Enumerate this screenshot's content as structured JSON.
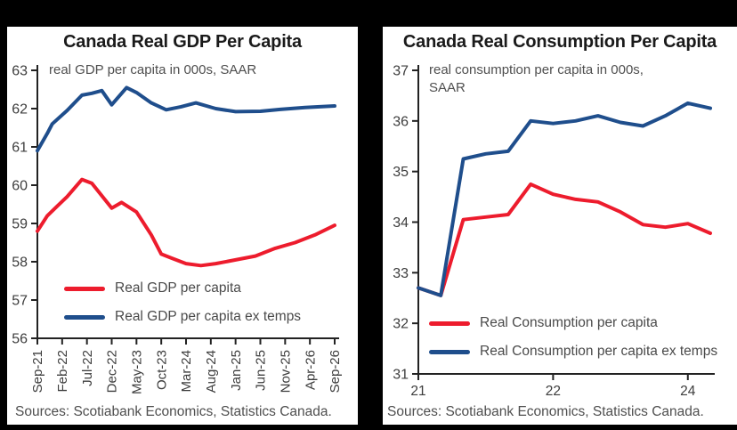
{
  "page": {
    "frame_background": "#000000",
    "panel_background": "#ffffff",
    "accent_red": "#ed1c2d",
    "accent_navy": "#1f4e8c"
  },
  "chart_data": [
    {
      "type": "line",
      "title": "Canada Real GDP Per Capita",
      "note": "real GDP per capita in 000s, SAAR",
      "source": "Sources: Scotiabank Economics, Statistics Canada.",
      "legend_position": "inside-lower-left",
      "grid": false,
      "y_axis": {
        "min": 56,
        "max": 63,
        "step": 1,
        "ticks": [
          63,
          62,
          61,
          60,
          59,
          58,
          57,
          56
        ]
      },
      "x_axis": {
        "max_x": 60,
        "unit": "months from Sep-21",
        "rotated_labels": true,
        "ticks": [
          {
            "x": 0,
            "label": "Sep-21"
          },
          {
            "x": 5,
            "label": "Feb-22"
          },
          {
            "x": 10,
            "label": "Jul-22"
          },
          {
            "x": 15,
            "label": "Dec-22"
          },
          {
            "x": 20,
            "label": "May-23"
          },
          {
            "x": 25,
            "label": "Oct-23"
          },
          {
            "x": 30,
            "label": "Mar-24"
          },
          {
            "x": 35,
            "label": "Aug-24"
          },
          {
            "x": 40,
            "label": "Jan-25"
          },
          {
            "x": 45,
            "label": "Jun-25"
          },
          {
            "x": 50,
            "label": "Nov-25"
          },
          {
            "x": 55,
            "label": "Apr-26"
          },
          {
            "x": 60,
            "label": "Sep-26"
          }
        ]
      },
      "series": [
        {
          "name": "Real GDP per capita",
          "color": "#ed1c2d",
          "points": [
            [
              0,
              58.8
            ],
            [
              2,
              59.2
            ],
            [
              4,
              59.45
            ],
            [
              6,
              59.7
            ],
            [
              9,
              60.15
            ],
            [
              11,
              60.05
            ],
            [
              15,
              59.4
            ],
            [
              17,
              59.55
            ],
            [
              20,
              59.3
            ],
            [
              23,
              58.7
            ],
            [
              25,
              58.2
            ],
            [
              27,
              58.1
            ],
            [
              30,
              57.95
            ],
            [
              33,
              57.9
            ],
            [
              36,
              57.95
            ],
            [
              40,
              58.05
            ],
            [
              44,
              58.15
            ],
            [
              48,
              58.35
            ],
            [
              52,
              58.5
            ],
            [
              56,
              58.7
            ],
            [
              60,
              58.95
            ]
          ]
        },
        {
          "name": "Real GDP per capita ex temps",
          "color": "#1f4e8c",
          "points": [
            [
              0,
              60.9
            ],
            [
              2,
              61.35
            ],
            [
              3,
              61.6
            ],
            [
              6,
              61.95
            ],
            [
              9,
              62.35
            ],
            [
              11,
              62.4
            ],
            [
              13,
              62.47
            ],
            [
              15,
              62.1
            ],
            [
              18,
              62.55
            ],
            [
              20,
              62.42
            ],
            [
              23,
              62.15
            ],
            [
              26,
              61.97
            ],
            [
              29,
              62.05
            ],
            [
              32,
              62.15
            ],
            [
              36,
              62.0
            ],
            [
              40,
              61.92
            ],
            [
              45,
              61.93
            ],
            [
              49,
              61.98
            ],
            [
              54,
              62.03
            ],
            [
              60,
              62.07
            ]
          ]
        }
      ]
    },
    {
      "type": "line",
      "title": "Canada Real Consumption Per Capita",
      "note": "real consumption per capita in 000s, SAAR",
      "source": "Sources: Scotiabank Economics, Statistics Canada.",
      "legend_position": "inside-lower-left",
      "grid": false,
      "y_axis": {
        "min": 31,
        "max": 37,
        "step": 1,
        "ticks": [
          37,
          36,
          35,
          34,
          33,
          32,
          31
        ]
      },
      "x_axis": {
        "max_x": 13,
        "unit": "quarters from 2021",
        "rotated_labels": false,
        "ticks": [
          {
            "x": 0,
            "label": "21"
          },
          {
            "x": 6,
            "label": "22"
          },
          {
            "x": 12,
            "label": "24"
          }
        ]
      },
      "series": [
        {
          "name": "Real Consumption per capita",
          "color": "#ed1c2d",
          "points": [
            [
              0,
              32.7
            ],
            [
              1,
              32.55
            ],
            [
              2,
              34.05
            ],
            [
              3,
              34.1
            ],
            [
              4,
              34.15
            ],
            [
              5,
              34.75
            ],
            [
              6,
              34.55
            ],
            [
              7,
              34.45
            ],
            [
              8,
              34.4
            ],
            [
              9,
              34.2
            ],
            [
              10,
              33.95
            ],
            [
              11,
              33.9
            ],
            [
              12,
              33.97
            ],
            [
              13,
              33.78
            ]
          ]
        },
        {
          "name": "Real Consumption per capita ex temps",
          "color": "#1f4e8c",
          "points": [
            [
              0,
              32.7
            ],
            [
              1,
              32.55
            ],
            [
              2,
              35.25
            ],
            [
              3,
              35.35
            ],
            [
              4,
              35.4
            ],
            [
              5,
              36.0
            ],
            [
              6,
              35.95
            ],
            [
              7,
              36.0
            ],
            [
              8,
              36.1
            ],
            [
              9,
              35.97
            ],
            [
              10,
              35.9
            ],
            [
              11,
              36.1
            ],
            [
              12,
              36.35
            ],
            [
              13,
              36.25
            ]
          ]
        }
      ]
    }
  ]
}
